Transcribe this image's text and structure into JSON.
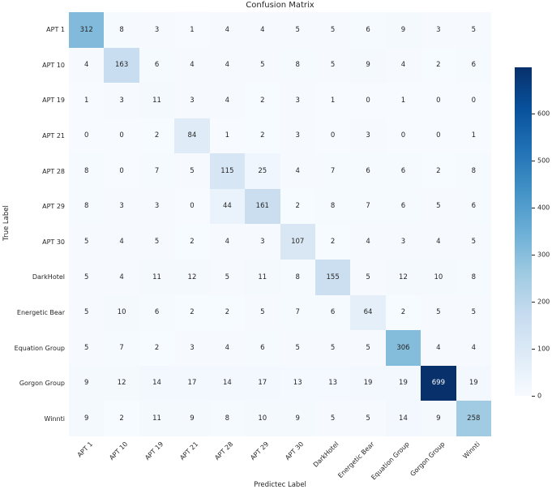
{
  "chart_data": {
    "type": "heatmap",
    "title": "Confusion Matrix",
    "xlabel": "Predictec Label",
    "ylabel": "True Label",
    "categories": [
      "APT 1",
      "APT 10",
      "APT 19",
      "APT 21",
      "APT 28",
      "APT 29",
      "APT 30",
      "DarkHotel",
      "Energetic Bear",
      "Equation Group",
      "Gorgon Group",
      "Winnti"
    ],
    "matrix": [
      [
        312,
        8,
        3,
        1,
        4,
        4,
        5,
        5,
        6,
        9,
        3,
        5
      ],
      [
        4,
        163,
        6,
        4,
        4,
        5,
        8,
        5,
        9,
        4,
        2,
        6
      ],
      [
        1,
        3,
        11,
        3,
        4,
        2,
        3,
        1,
        0,
        1,
        0,
        0
      ],
      [
        0,
        0,
        2,
        84,
        1,
        2,
        3,
        0,
        3,
        0,
        0,
        1
      ],
      [
        8,
        0,
        7,
        5,
        115,
        25,
        4,
        7,
        6,
        6,
        2,
        8
      ],
      [
        8,
        3,
        3,
        0,
        44,
        161,
        2,
        8,
        7,
        6,
        5,
        6
      ],
      [
        5,
        4,
        5,
        2,
        4,
        3,
        107,
        2,
        4,
        3,
        4,
        5
      ],
      [
        5,
        4,
        11,
        12,
        5,
        11,
        8,
        155,
        5,
        12,
        10,
        8
      ],
      [
        5,
        10,
        6,
        2,
        2,
        5,
        7,
        6,
        64,
        2,
        5,
        5
      ],
      [
        5,
        7,
        2,
        3,
        4,
        6,
        5,
        5,
        5,
        306,
        4,
        4
      ],
      [
        9,
        12,
        14,
        17,
        14,
        17,
        13,
        13,
        19,
        19,
        699,
        19
      ],
      [
        9,
        2,
        11,
        9,
        8,
        10,
        9,
        5,
        5,
        14,
        9,
        258
      ]
    ],
    "vmin": 0,
    "vmax": 699,
    "colormap": "Blues",
    "colormap_stops": [
      "#f7fbff",
      "#deebf7",
      "#c6dbef",
      "#9ecae1",
      "#6baed6",
      "#4292c6",
      "#2171b5",
      "#08519c",
      "#08306b"
    ],
    "colorbar_ticks": [
      0,
      100,
      200,
      300,
      400,
      500,
      600
    ],
    "annotation_dark": "#262626",
    "annotation_light": "#ffffff",
    "legend_position": "right-colorbar",
    "grid": false,
    "x_tick_rotation": 45
  }
}
